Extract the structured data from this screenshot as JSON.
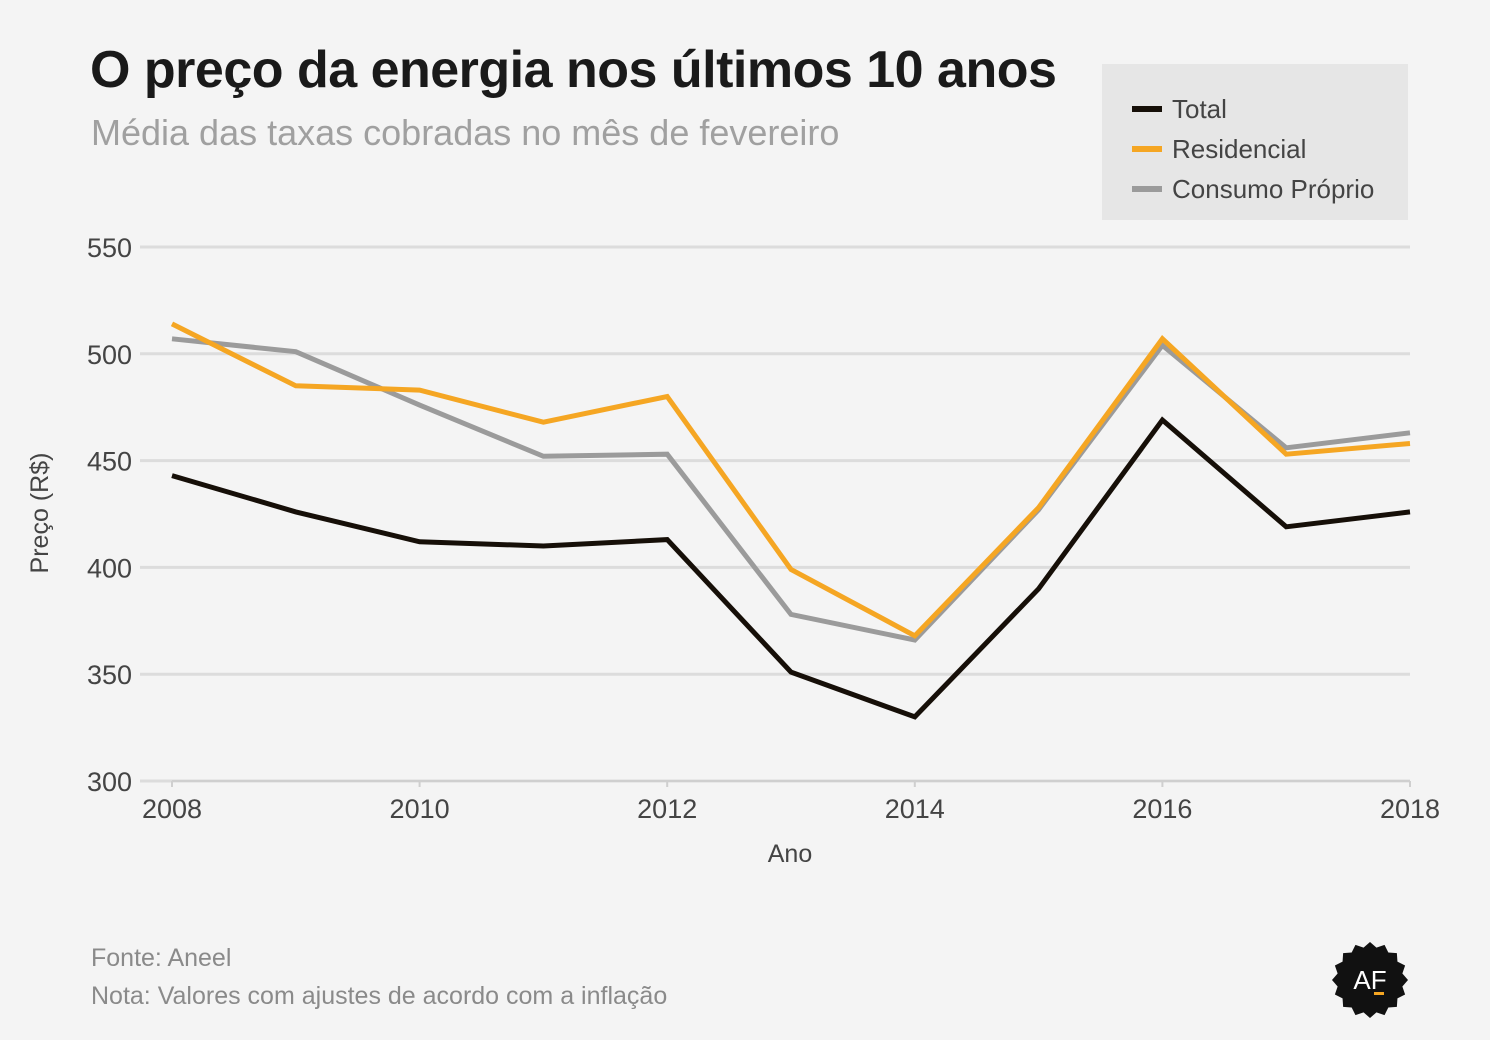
{
  "header": {
    "title": "O preço da energia nos últimos 10 anos",
    "subtitle": "Média das taxas cobradas no mês de fevereiro"
  },
  "legend": {
    "placement": "top-right",
    "items": [
      {
        "label": "Total",
        "color": "#160f08"
      },
      {
        "label": "Residencial",
        "color": "#f5a623"
      },
      {
        "label": "Consumo Próprio",
        "color": "#9b9b9b"
      }
    ]
  },
  "footer": {
    "source": "Fonte: Aneel",
    "note": "Nota: Valores com ajustes de acordo com a inflação",
    "logo_text": "AF"
  },
  "chart_data": {
    "type": "line",
    "title": "O preço da energia nos últimos 10 anos",
    "subtitle": "Média das taxas cobradas no mês de fevereiro",
    "xlabel": "Ano",
    "ylabel": "Preço (R$)",
    "x": [
      2008,
      2009,
      2010,
      2011,
      2012,
      2013,
      2014,
      2015,
      2016,
      2017,
      2018
    ],
    "xticks": [
      2008,
      2010,
      2012,
      2014,
      2016,
      2018
    ],
    "yticks": [
      300,
      350,
      400,
      450,
      500,
      550
    ],
    "xlim": [
      2008,
      2018
    ],
    "ylim": [
      300,
      550
    ],
    "grid": true,
    "series": [
      {
        "name": "Total",
        "color": "#160f08",
        "values": [
          443,
          426,
          412,
          410,
          413,
          351,
          330,
          390,
          469,
          419,
          426
        ]
      },
      {
        "name": "Residencial",
        "color": "#f5a623",
        "values": [
          514,
          485,
          483,
          468,
          480,
          399,
          368,
          428,
          507,
          453,
          458
        ]
      },
      {
        "name": "Consumo Próprio",
        "color": "#9b9b9b",
        "values": [
          507,
          501,
          476,
          452,
          453,
          378,
          366,
          427,
          504,
          456,
          463
        ]
      }
    ]
  }
}
